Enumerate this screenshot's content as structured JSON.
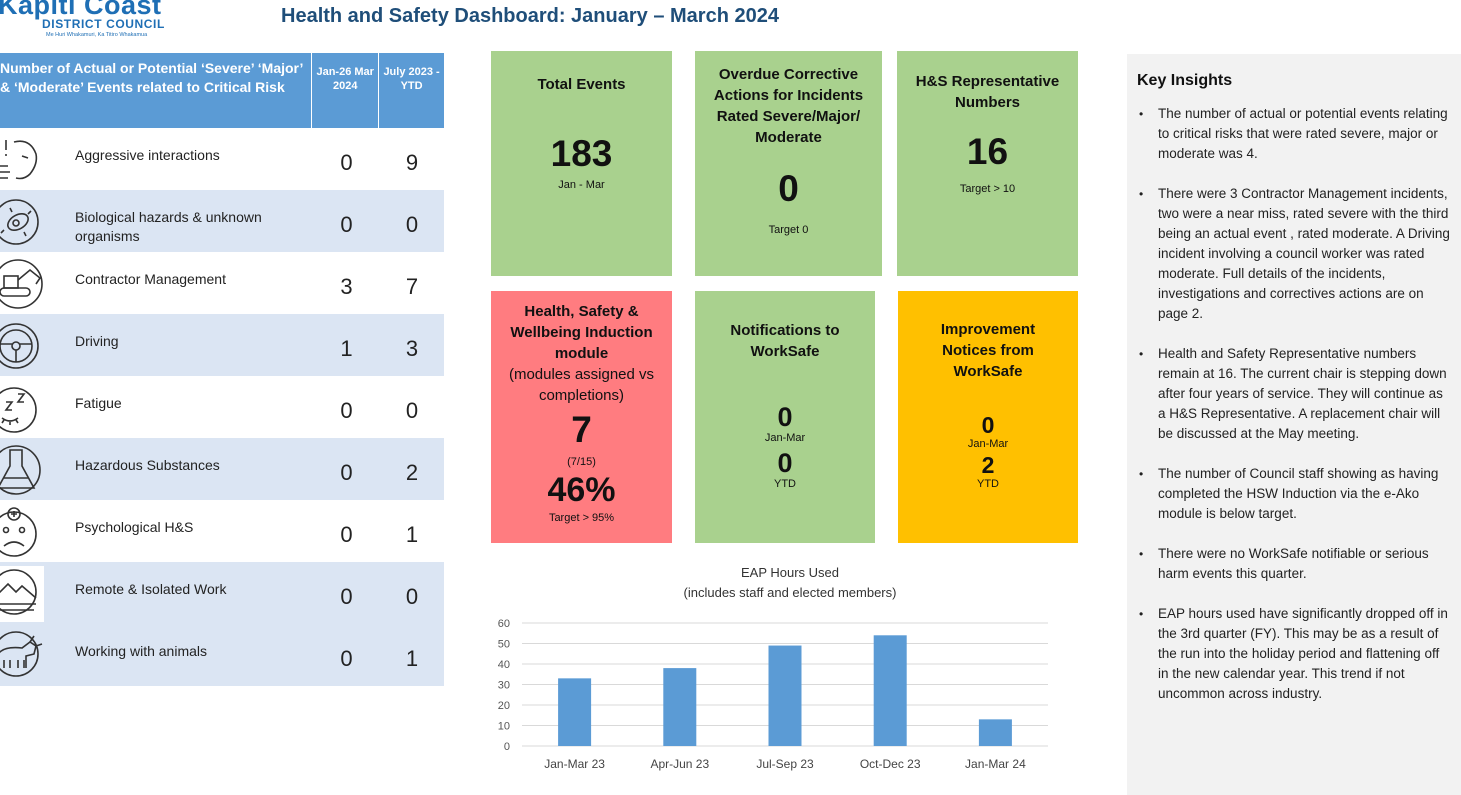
{
  "header": {
    "logo_main": "Kapiti Coast",
    "logo_sub": "DISTRICT COUNCIL",
    "logo_tagline": "Me Huri Whakamuri, Ka Titiro Whakamua",
    "title": "Health and Safety Dashboard:  January – March 2024"
  },
  "risk_table": {
    "header": {
      "label": "Number of Actual or Potential ‘Severe’ ‘Major’  & ‘Moderate’ Events related to Critical Risk",
      "col1": "Jan-26 Mar 2024",
      "col2": "July 2023 - YTD"
    },
    "rows": [
      {
        "icon": "aggressive-interactions-icon",
        "label": "Aggressive interactions",
        "v1": "0",
        "v2": "9"
      },
      {
        "icon": "biohazard-icon",
        "label": "Biological hazards & unknown organisms",
        "v1": "0",
        "v2": "0"
      },
      {
        "icon": "excavator-icon",
        "label": "Contractor Management",
        "v1": "3",
        "v2": "7"
      },
      {
        "icon": "steering-wheel-icon",
        "label": "Driving",
        "v1": "1",
        "v2": "3"
      },
      {
        "icon": "sleepy-face-icon",
        "label": "Fatigue",
        "v1": "0",
        "v2": "0"
      },
      {
        "icon": "flask-icon",
        "label": "Hazardous Substances",
        "v1": "0",
        "v2": "2"
      },
      {
        "icon": "sad-face-medical-icon",
        "label": "Psychological H&S",
        "v1": "0",
        "v2": "1"
      },
      {
        "icon": "mountain-icon",
        "label": "Remote & Isolated Work",
        "v1": "0",
        "v2": "0"
      },
      {
        "icon": "bull-icon",
        "label": "Working with animals",
        "v1": "0",
        "v2": "1"
      }
    ]
  },
  "tiles": {
    "total_events": {
      "title": "Total Events",
      "value": "183",
      "sub": "Jan - Mar",
      "color": "#a9d18e"
    },
    "overdue": {
      "title": "Overdue Corrective Actions for Incidents Rated Severe/Major/ Moderate",
      "value": "0",
      "sub": "Target 0",
      "color": "#a9d18e"
    },
    "hs_reps": {
      "title": "H&S Representative Numbers",
      "value": "16",
      "sub": "Target > 10",
      "color": "#a9d18e"
    },
    "induction": {
      "title_bold": "Health, Safety & Wellbeing Induction module",
      "title_normal": "(modules assigned vs completions)",
      "value": "7",
      "ratio": "(7/15)",
      "percent": "46%",
      "target": "Target > 95%",
      "color": "#ff7c80"
    },
    "notifications": {
      "title": "Notifications to WorkSafe",
      "value1": "0",
      "label1": "Jan-Mar",
      "value2": "0",
      "label2": "YTD",
      "color": "#a9d18e"
    },
    "improvement": {
      "title": "Improvement Notices from WorkSafe",
      "value1": "0",
      "label1": "Jan-Mar",
      "value2": "2",
      "label2": "YTD",
      "color": "#ffc000"
    }
  },
  "chart_data": {
    "type": "bar",
    "title": "EAP Hours Used",
    "subtitle": "(includes staff and elected members)",
    "categories": [
      "Jan-Mar 23",
      "Apr-Jun 23",
      "Jul-Sep 23",
      "Oct-Dec 23",
      "Jan-Mar 24"
    ],
    "values": [
      33,
      38,
      49,
      54,
      13
    ],
    "ylim": [
      0,
      60
    ],
    "yticks": [
      0,
      10,
      20,
      30,
      40,
      50,
      60
    ],
    "grid": true,
    "bar_color": "#5b9bd5"
  },
  "insights": {
    "title": "Key Insights",
    "items": [
      "The number of actual or potential events relating to critical risks that were rated severe, major or moderate was 4.",
      "There were 3 Contractor Management incidents, two were a near miss, rated severe with the third being an actual event , rated moderate.   A Driving incident involving a council worker was rated moderate.  Full details of the incidents, investigations and correctives actions are on page 2.",
      "Health and Safety Representative numbers remain at 16. The current chair is stepping down after four years of service.  They will continue as a H&S Representative.  A replacement chair will be discussed at the May meeting.",
      "The number of Council staff showing as having completed the HSW Induction via the e-Ako module is below target.",
      "There were no WorkSafe notifiable or serious harm events this quarter.",
      "EAP hours used have significantly dropped off in the 3rd quarter (FY). This may be as a result of the run into the holiday period and  flattening off in the new calendar year. This trend if not uncommon across industry."
    ]
  }
}
